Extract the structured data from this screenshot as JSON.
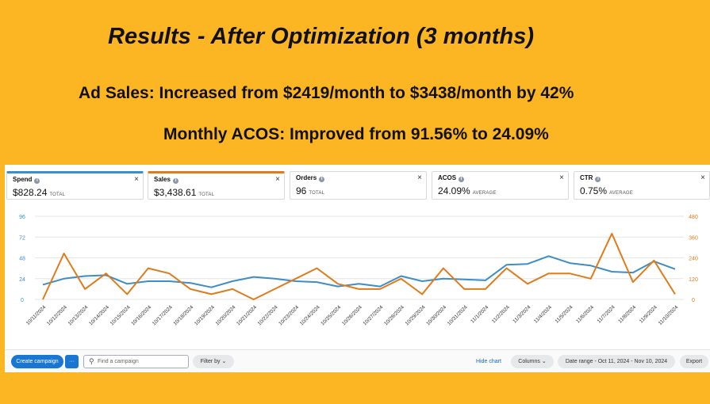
{
  "slide": {
    "title": "Results - After Optimization (3 months)",
    "headline1": "Ad Sales: Increased from $2419/month to $3438/month by 42%",
    "headline2": "Monthly ACOS: Improved from 91.56% to 24.09%"
  },
  "metrics": [
    {
      "label": "Spend",
      "value": "$828.24",
      "suffix": "TOTAL",
      "accent": "#3d8dc6"
    },
    {
      "label": "Sales",
      "value": "$3,438.61",
      "suffix": "TOTAL",
      "accent": "#e07b1b"
    },
    {
      "label": "Orders",
      "value": "96",
      "suffix": "TOTAL"
    },
    {
      "label": "ACOS",
      "value": "24.09%",
      "suffix": "AVERAGE"
    },
    {
      "label": "CTR",
      "value": "0.75%",
      "suffix": "AVERAGE"
    }
  ],
  "icons": {
    "info": "info-icon",
    "close": "close-icon",
    "more": "more-icon",
    "search": "search-icon",
    "chevron": "chevron-down-icon"
  },
  "glyphs": {
    "info": "i",
    "close": "×",
    "more": "···",
    "search": "⚲",
    "chevron": "⌄"
  },
  "toolbar": {
    "create_campaign": "Create campaign",
    "search_placeholder": "Find a campaign",
    "filter_by": "Filter by",
    "hide_chart": "Hide chart",
    "columns": "Columns",
    "date_range": "Date range - Oct 11, 2024 - Nov 10, 2024",
    "export": "Export"
  },
  "chart_data": {
    "type": "line",
    "x": [
      "10/11/2024",
      "10/12/2024",
      "10/13/2024",
      "10/14/2024",
      "10/15/2024",
      "10/16/2024",
      "10/17/2024",
      "10/18/2024",
      "10/19/2024",
      "10/20/2024",
      "10/21/2024",
      "10/22/2024",
      "10/23/2024",
      "10/24/2024",
      "10/25/2024",
      "10/26/2024",
      "10/27/2024",
      "10/28/2024",
      "10/29/2024",
      "10/30/2024",
      "10/31/2024",
      "11/1/2024",
      "11/2/2024",
      "11/3/2024",
      "11/4/2024",
      "11/5/2024",
      "11/6/2024",
      "11/7/2024",
      "11/8/2024",
      "11/9/2024",
      "11/10/2024"
    ],
    "y_left_ticks": [
      "96",
      "72",
      "48",
      "24",
      "0"
    ],
    "y_right_ticks": [
      "480",
      "360",
      "240",
      "120",
      "0"
    ],
    "ylim_left": [
      0,
      96
    ],
    "ylim_right": [
      0,
      480
    ],
    "grid": true,
    "series": [
      {
        "name": "Spend",
        "axis": "left",
        "color": "#3d8dc6",
        "values": [
          17,
          24,
          27,
          28,
          18,
          21,
          21,
          19,
          14,
          21,
          26,
          24,
          21,
          20,
          15,
          18,
          15,
          27,
          21,
          24,
          23,
          22,
          40,
          41,
          50,
          42,
          39,
          32,
          31,
          44,
          35
        ]
      },
      {
        "name": "Sales",
        "axis": "right",
        "color": "#e07b1b",
        "values": [
          0,
          265,
          60,
          150,
          30,
          180,
          150,
          60,
          30,
          60,
          0,
          60,
          120,
          180,
          90,
          60,
          60,
          120,
          30,
          180,
          60,
          60,
          180,
          90,
          150,
          150,
          120,
          380,
          100,
          225,
          30
        ]
      }
    ]
  }
}
